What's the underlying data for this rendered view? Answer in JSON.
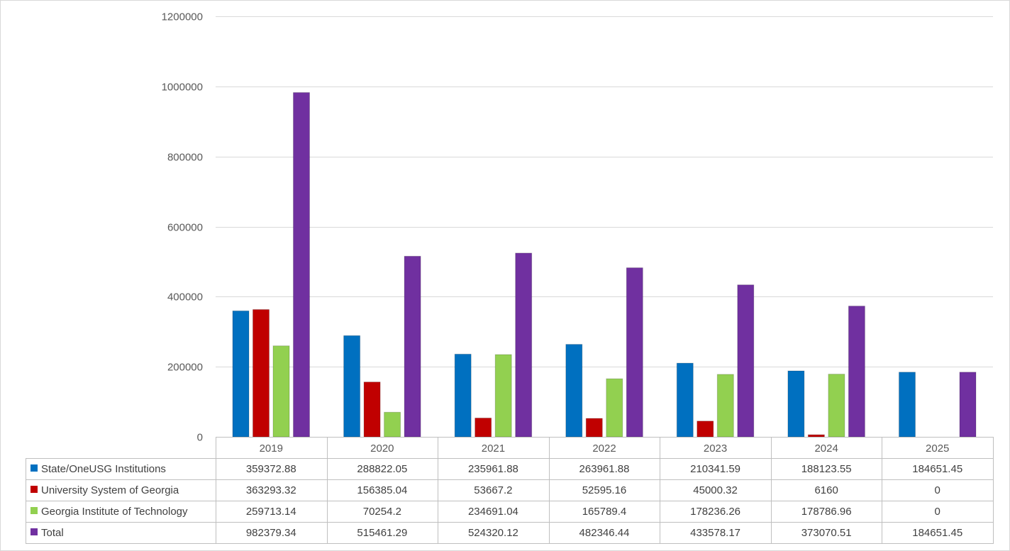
{
  "chart_data": {
    "type": "bar",
    "title": "",
    "xlabel": "",
    "ylabel": "",
    "ylim": [
      0,
      1200000
    ],
    "yticks": [
      0,
      200000,
      400000,
      600000,
      800000,
      1000000,
      1200000
    ],
    "grid": true,
    "legend": "data-table",
    "categories": [
      "2019",
      "2020",
      "2021",
      "2022",
      "2023",
      "2024",
      "2025"
    ],
    "series": [
      {
        "name": "State/OneUSG Institutions",
        "color": "#0070c0",
        "values": [
          359372.88,
          288822.05,
          235961.88,
          263961.88,
          210341.59,
          188123.55,
          184651.45
        ],
        "labels": [
          "359372.88",
          "288822.05",
          "235961.88",
          "263961.88",
          "210341.59",
          "188123.55",
          "184651.45"
        ]
      },
      {
        "name": "University System of Georgia",
        "color": "#c00000",
        "values": [
          363293.32,
          156385.04,
          53667.2,
          52595.16,
          45000.32,
          6160,
          0
        ],
        "labels": [
          "363293.32",
          "156385.04",
          "53667.2",
          "52595.16",
          "45000.32",
          "6160",
          "0"
        ]
      },
      {
        "name": "Georgia Institute of Technology",
        "color": "#92d050",
        "values": [
          259713.14,
          70254.2,
          234691.04,
          165789.4,
          178236.26,
          178786.96,
          0
        ],
        "labels": [
          "259713.14",
          "70254.2",
          "234691.04",
          "165789.4",
          "178236.26",
          "178786.96",
          "0"
        ]
      },
      {
        "name": "Total",
        "color": "#7030a0",
        "values": [
          982379.34,
          515461.29,
          524320.12,
          482346.44,
          433578.17,
          373070.51,
          184651.45
        ],
        "labels": [
          "982379.34",
          "515461.29",
          "524320.12",
          "482346.44",
          "433578.17",
          "373070.51",
          "184651.45"
        ]
      }
    ]
  }
}
